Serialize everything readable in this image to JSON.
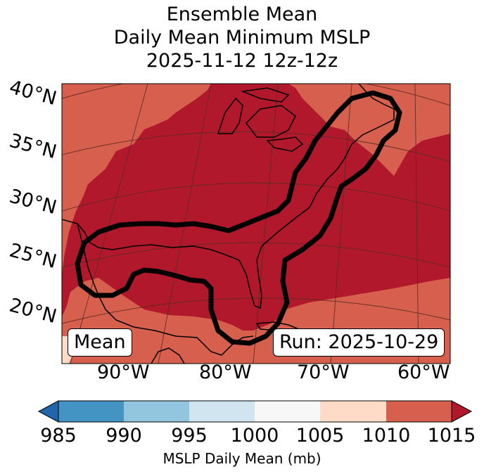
{
  "title": {
    "line1": "Ensemble Mean",
    "line2": "Daily Mean Minimum MSLP",
    "line3": "2025-11-12 12z-12z"
  },
  "map": {
    "latitude_labels": [
      "40°N",
      "35°N",
      "30°N",
      "25°N",
      "20°N"
    ],
    "longitude_labels": [
      "90°W",
      "80°W",
      "70°W",
      "60°W"
    ],
    "inset_left": "Mean",
    "inset_right": "Run: 2025-10-29",
    "field_colors": {
      "1010-1015": "#d6604d",
      "above-1015": "#b2182b",
      "1005-1010": "#fddbc7"
    },
    "contour_color": "#000000"
  },
  "colorbar": {
    "ticks": [
      "985",
      "990",
      "995",
      "1000",
      "1005",
      "1010",
      "1015"
    ],
    "label": "MSLP Daily Mean (mb)",
    "bins": [
      {
        "range": "<985",
        "color": "#2166ac"
      },
      {
        "range": "985-990",
        "color": "#4393c3"
      },
      {
        "range": "990-995",
        "color": "#92c5de"
      },
      {
        "range": "995-1000",
        "color": "#d1e5f0"
      },
      {
        "range": "1000-1005",
        "color": "#f7f7f7"
      },
      {
        "range": "1005-1010",
        "color": "#fddbc7"
      },
      {
        "range": "1010-1015",
        "color": "#d6604d"
      },
      {
        "range": ">1015",
        "color": "#b2182b"
      }
    ]
  }
}
